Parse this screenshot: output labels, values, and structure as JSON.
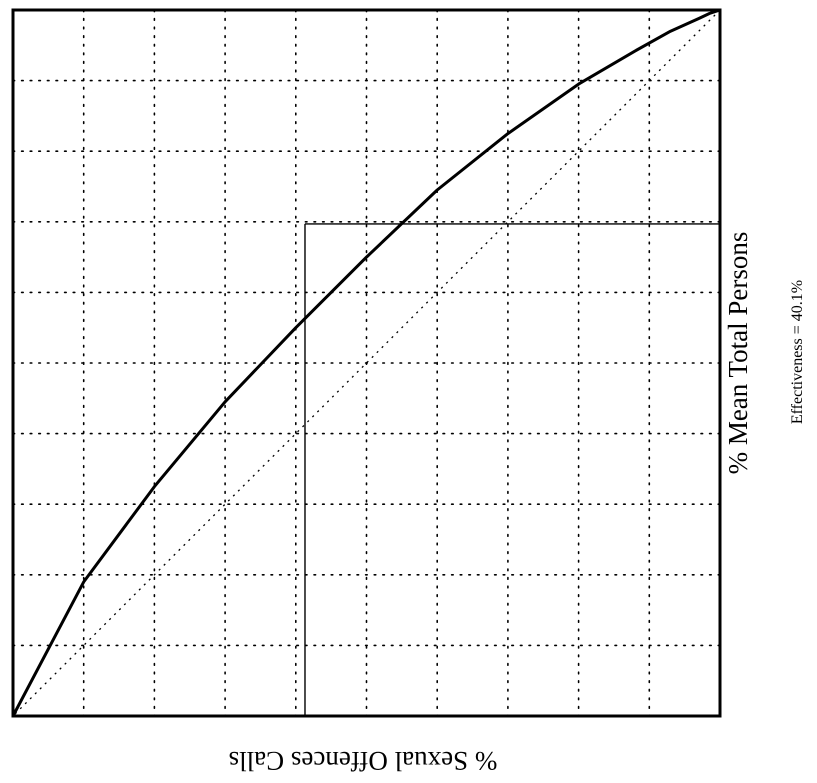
{
  "chart_data": {
    "type": "line",
    "xlabel": "% Sexual Offences Calls",
    "ylabel": "% Mean Total Persons",
    "annotation": "Effectiveness = 40.1%",
    "xlim": [
      0,
      100
    ],
    "ylim": [
      0,
      100
    ],
    "grid": true,
    "orientation": "rotated-180 (x axis runs right-to-left, y axis runs bottom-to-top)",
    "series": [
      {
        "x": [
          0,
          1.5,
          3,
          7,
          12,
          20,
          30,
          40,
          50,
          60,
          70,
          80,
          90,
          100
        ],
        "y": [
          0,
          0.5,
          1.2,
          3.0,
          5.8,
          10.5,
          17.5,
          25.5,
          35,
          45,
          55.5,
          67.5,
          81,
          100
        ]
      }
    ],
    "diagonal": {
      "x": [
        0,
        100
      ],
      "y": [
        0,
        100
      ]
    },
    "reference": {
      "x": 58.7,
      "y": 30.3
    }
  }
}
